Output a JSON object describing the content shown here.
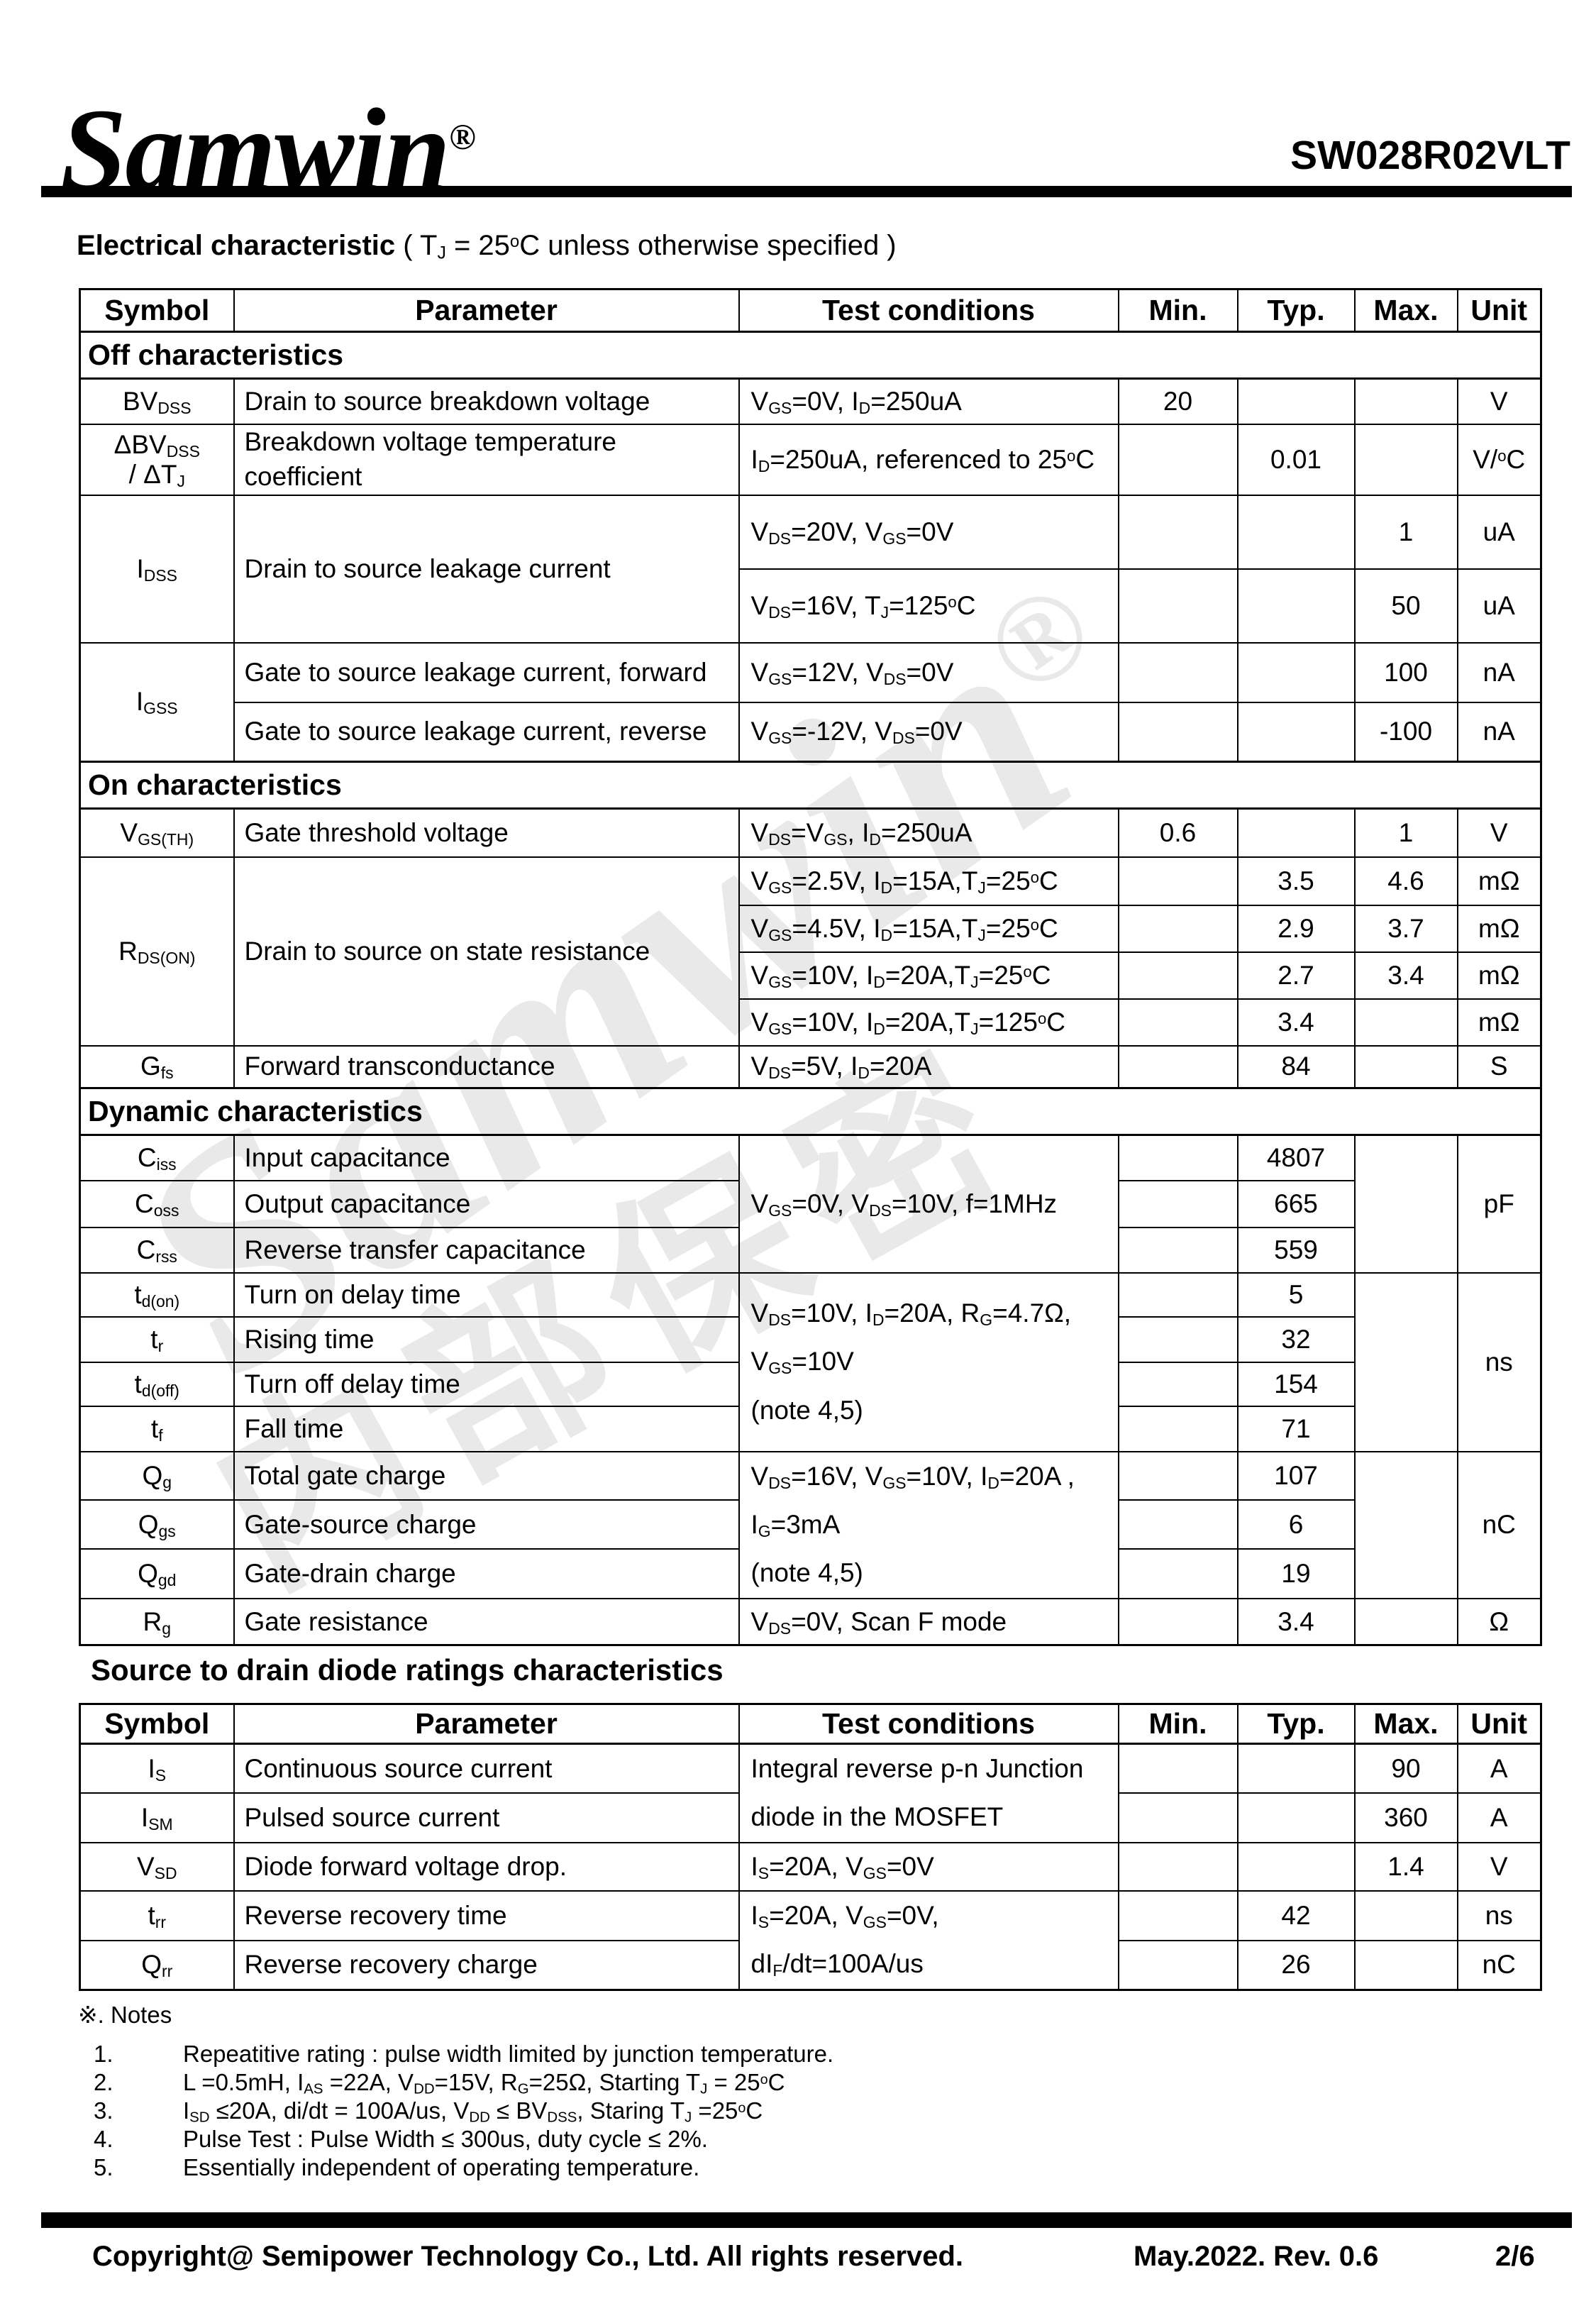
{
  "header": {
    "logo": "Samwin^®^",
    "part_number": "SW028R02VLT",
    "heading_bold": "Electrical characteristic",
    "heading_rest": " ( T~J~ = 25^o^C unless otherwise specified )"
  },
  "watermark": {
    "brand": "Samwin^®^",
    "cn": "内部保密"
  },
  "col_headers": [
    "Symbol",
    "Parameter",
    "Test conditions",
    "Min.",
    "Typ.",
    "Max.",
    "Unit"
  ],
  "t1": {
    "sec_off": "Off characteristics",
    "sec_on": "On characteristics",
    "sec_dyn": "Dynamic characteristics",
    "bvdss": {
      "sym": "BV~DSS~",
      "param": "Drain to source breakdown voltage",
      "test": "V~GS~=0V, I~D~=250uA",
      "min": "20",
      "typ": "",
      "max": "",
      "unit": "V"
    },
    "dbvdss": {
      "sym": "ΔBV~DSS~\n/ ΔT~J~",
      "param": "Breakdown voltage temperature coefficient",
      "test": "I~D~=250uA, referenced to 25^o^C",
      "min": "",
      "typ": "0.01",
      "max": "",
      "unit": "V/^o^C"
    },
    "idss": {
      "sym": "I~DSS~",
      "param": "Drain to source leakage current",
      "r1": {
        "test": "V~DS~=20V, V~GS~=0V",
        "min": "",
        "typ": "",
        "max": "1",
        "unit": "uA"
      },
      "r2": {
        "test": "V~DS~=16V, T~J~=125^o^C",
        "min": "",
        "typ": "",
        "max": "50",
        "unit": "uA"
      }
    },
    "igss": {
      "sym": "I~GSS~",
      "r1": {
        "param": "Gate to source leakage current, forward",
        "test": "V~GS~=12V, V~DS~=0V",
        "min": "",
        "typ": "",
        "max": "100",
        "unit": "nA"
      },
      "r2": {
        "param": "Gate to source leakage current, reverse",
        "test": "V~GS~=-12V, V~DS~=0V",
        "min": "",
        "typ": "",
        "max": "-100",
        "unit": "nA"
      }
    },
    "vgsth": {
      "sym": "V~GS(TH)~",
      "param": "Gate threshold voltage",
      "test": "V~DS~=V~GS~, I~D~=250uA",
      "min": "0.6",
      "typ": "",
      "max": "1",
      "unit": "V"
    },
    "rdson": {
      "sym": "R~DS(ON)~",
      "param": "Drain to source on state resistance",
      "r1": {
        "test": "V~GS~=2.5V, I~D~=15A,T~J~=25^o^C",
        "min": "",
        "typ": "3.5",
        "max": "4.6",
        "unit": "mΩ"
      },
      "r2": {
        "test": "V~GS~=4.5V, I~D~=15A,T~J~=25^o^C",
        "min": "",
        "typ": "2.9",
        "max": "3.7",
        "unit": "mΩ"
      },
      "r3": {
        "test": "V~GS~=10V, I~D~=20A,T~J~=25^o^C",
        "min": "",
        "typ": "2.7",
        "max": "3.4",
        "unit": "mΩ"
      },
      "r4": {
        "test": "V~GS~=10V, I~D~=20A,T~J~=125^o^C",
        "min": "",
        "typ": "3.4",
        "max": "",
        "unit": "mΩ"
      }
    },
    "gfs": {
      "sym": "G~fs~",
      "param": "Forward transconductance",
      "test": "V~DS~=5V, I~D~=20A",
      "min": "",
      "typ": "84",
      "max": "",
      "unit": "S"
    },
    "cap": {
      "test": "V~GS~=0V, V~DS~=10V, f=1MHz",
      "unit": "pF",
      "r1": {
        "sym": "C~iss~",
        "param": "Input capacitance",
        "min": "",
        "typ": "4807"
      },
      "r2": {
        "sym": "C~oss~",
        "param": "Output capacitance",
        "min": "",
        "typ": "665"
      },
      "r3": {
        "sym": "C~rss~",
        "param": "Reverse transfer capacitance",
        "min": "",
        "typ": "559"
      }
    },
    "sw": {
      "test": "V~DS~=10V, I~D~=20A, R~G~=4.7Ω,\nV~GS~=10V\n(note 4,5)",
      "unit": "ns",
      "r1": {
        "sym": "t~d(on)~",
        "param": "Turn on delay time",
        "min": "",
        "typ": "5"
      },
      "r2": {
        "sym": "t~r~",
        "param": "Rising time",
        "min": "",
        "typ": "32"
      },
      "r3": {
        "sym": "t~d(off)~",
        "param": "Turn off delay time",
        "min": "",
        "typ": "154"
      },
      "r4": {
        "sym": "t~f~",
        "param": "Fall time",
        "min": "",
        "typ": "71"
      }
    },
    "q": {
      "test": "V~DS~=16V, V~GS~=10V, I~D~=20A ,\nI~G~=3mA\n(note 4,5)",
      "unit": "nC",
      "r1": {
        "sym": "Q~g~",
        "param": "Total gate charge",
        "min": "",
        "typ": "107"
      },
      "r2": {
        "sym": "Q~gs~",
        "param": "Gate-source charge",
        "min": "",
        "typ": "6"
      },
      "r3": {
        "sym": "Q~gd~",
        "param": "Gate-drain charge",
        "min": "",
        "typ": "19"
      }
    },
    "rg": {
      "sym": "R~g~",
      "param": "Gate resistance",
      "test": "V~DS~=0V, Scan F mode",
      "min": "",
      "typ": "3.4",
      "max": "",
      "unit": "Ω"
    }
  },
  "diode_heading": "Source to drain diode ratings characteristics",
  "t2": {
    "is_grp": {
      "test": "Integral reverse p-n Junction\ndiode in the MOSFET",
      "r1": {
        "sym": "I~S~",
        "param": "Continuous source current",
        "min": "",
        "typ": "",
        "max": "90",
        "unit": "A"
      },
      "r2": {
        "sym": "I~SM~",
        "param": "Pulsed source current",
        "min": "",
        "typ": "",
        "max": "360",
        "unit": "A"
      }
    },
    "vsd": {
      "sym": "V~SD~",
      "param": "Diode forward voltage drop.",
      "test": "I~S~=20A, V~GS~=0V",
      "min": "",
      "typ": "",
      "max": "1.4",
      "unit": "V"
    },
    "rr_grp": {
      "test": "I~S~=20A, V~GS~=0V,\ndI~F~/dt=100A/us",
      "r1": {
        "sym": "t~rr~",
        "param": "Reverse recovery time",
        "min": "",
        "typ": "42",
        "max": "",
        "unit": "ns"
      },
      "r2": {
        "sym": "Q~rr~",
        "param": "Reverse recovery charge",
        "min": "",
        "typ": "26",
        "max": "",
        "unit": "nC"
      }
    }
  },
  "notes": {
    "title": "※. Notes",
    "items": [
      {
        "num": "1.",
        "text": "Repeatitive rating : pulse width limited by junction temperature."
      },
      {
        "num": "2.",
        "text": "L =0.5mH, I~AS~ =22A, V~DD~=15V, R~G~=25Ω, Starting T~J~ = 25^o^C"
      },
      {
        "num": "3.",
        "text": "I~SD~ ≤20A, di/dt = 100A/us, V~DD~ ≤ BV~DSS~, Staring T~J~ =25^o^C"
      },
      {
        "num": "4.",
        "text": "Pulse Test : Pulse Width ≤ 300us, duty cycle ≤ 2%."
      },
      {
        "num": "5.",
        "text": "Essentially independent of operating temperature."
      }
    ]
  },
  "footer": {
    "copyright": "Copyright@ Semipower Technology Co., Ltd. All rights reserved.",
    "revision": "May.2022. Rev. 0.6",
    "page": "2/6"
  },
  "colors": {
    "ink": "#000000",
    "background": "#ffffff"
  }
}
